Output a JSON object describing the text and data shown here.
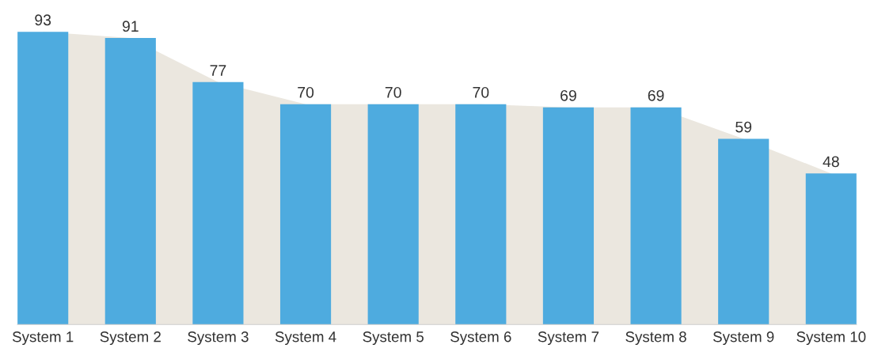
{
  "chart_data": {
    "type": "bar",
    "categories": [
      "System 1",
      "System 2",
      "System 3",
      "System 4",
      "System 5",
      "System 6",
      "System 7",
      "System 8",
      "System 9",
      "System 10"
    ],
    "series": [
      {
        "type": "area",
        "color": "#ebe7df",
        "values": [
          93,
          91,
          77,
          70,
          70,
          70,
          69,
          69,
          59,
          48
        ]
      },
      {
        "color": "#4eabdf",
        "values": [
          93,
          91,
          77,
          70,
          70,
          70,
          69,
          69,
          59,
          48
        ],
        "value_labels": [
          "93",
          "91",
          "77",
          "70",
          "70",
          "70",
          "69",
          "69",
          "59",
          "48"
        ]
      }
    ],
    "grid": false,
    "legend": false
  }
}
